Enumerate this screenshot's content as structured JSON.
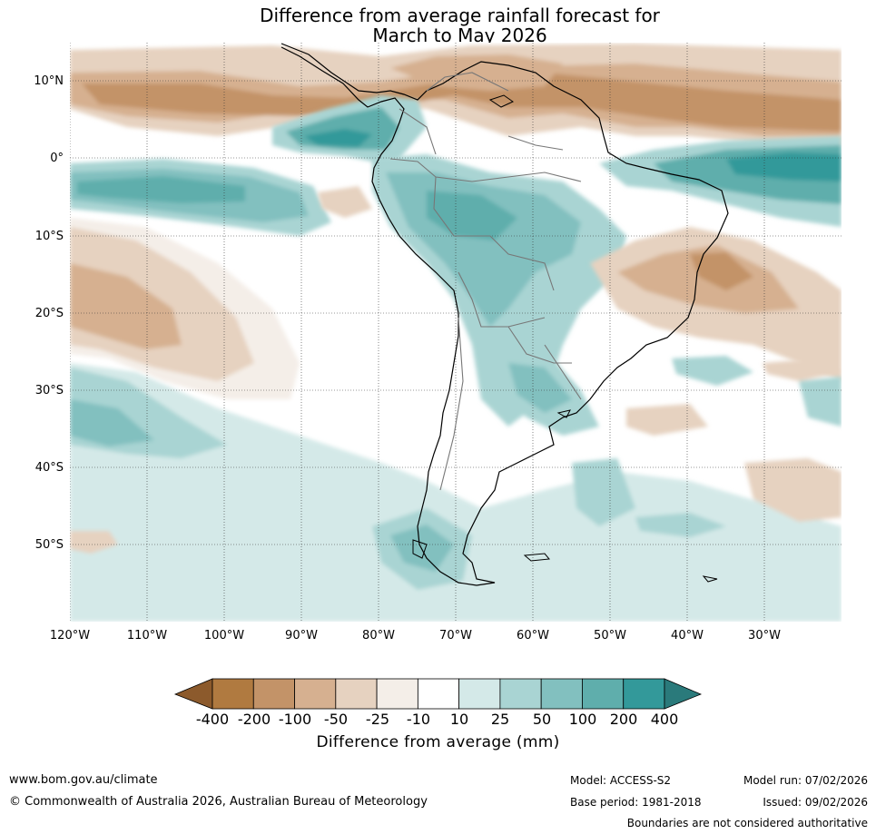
{
  "title": {
    "line1": "Difference from average rainfall forecast for",
    "line2": "March to May 2026"
  },
  "map": {
    "latitude_labels": [
      "10°N",
      "0°",
      "10°S",
      "20°S",
      "30°S",
      "40°S",
      "50°S"
    ],
    "longitude_labels": [
      "120°W",
      "110°W",
      "100°W",
      "90°W",
      "80°W",
      "70°W",
      "60°W",
      "50°W",
      "40°W",
      "30°W"
    ]
  },
  "legend": {
    "title": "Difference from average (mm)",
    "tick_labels": [
      "-400",
      "-200",
      "-100",
      "-50",
      "-25",
      "-10",
      "10",
      "25",
      "50",
      "100",
      "200",
      "400"
    ],
    "colors": [
      "#8c5a2c",
      "#b07a40",
      "#c39368",
      "#d6b090",
      "#e6d2c0",
      "#f4eee8",
      "#ffffff",
      "#d4e9e8",
      "#a9d4d3",
      "#82c0bf",
      "#5faeac",
      "#33999a",
      "#2a7a7b"
    ]
  },
  "footer": {
    "website": "www.bom.gov.au/climate",
    "copyright": "© Commonwealth of Australia 2026, Australian Bureau of Meteorology",
    "model": "Model: ACCESS-S2",
    "model_run": "Model run: 07/02/2026",
    "base_period": "Base period: 1981-2018",
    "issued": "Issued: 09/02/2026",
    "disclaimer": "Boundaries are not considered authoritative"
  }
}
